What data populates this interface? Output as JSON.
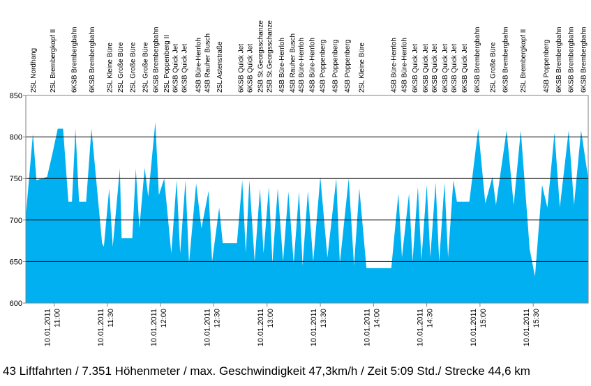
{
  "chart_data": {
    "type": "area",
    "caption": "43 Liftfahrten / 7.351 Höhenmeter / max. Geschwindigkeit 47,3km/h / Zeit 5:09 Std./ Strecke 44,6 km",
    "color": "#00b0f0",
    "grid": true,
    "ylim": [
      600,
      850
    ],
    "yticks": [
      600,
      650,
      700,
      750,
      800,
      850
    ],
    "xlim": [
      "10:44",
      "16:01"
    ],
    "xticks": [
      {
        "value": "11:00",
        "label": [
          "10.01.2011",
          "11:00"
        ]
      },
      {
        "value": "11:30",
        "label": [
          "10.01.2011",
          "11:30"
        ]
      },
      {
        "value": "12:00",
        "label": [
          "10.01.2011",
          "12:00"
        ]
      },
      {
        "value": "12:30",
        "label": [
          "10.01.2011",
          "12:30"
        ]
      },
      {
        "value": "13:00",
        "label": [
          "10.01.2011",
          "13:00"
        ]
      },
      {
        "value": "13:30",
        "label": [
          "10.01.2011",
          "13:30"
        ]
      },
      {
        "value": "14:00",
        "label": [
          "10.01.2011",
          "14:00"
        ]
      },
      {
        "value": "14:30",
        "label": [
          "10.01.2011",
          "14:30"
        ]
      },
      {
        "value": "15:00",
        "label": [
          "10.01.2011",
          "15:00"
        ]
      },
      {
        "value": "15:30",
        "label": [
          "10.01.2011",
          "15:30"
        ]
      }
    ],
    "x": [
      "10:44",
      "10:48",
      "10:50",
      "10:56",
      "10:59",
      "11:02",
      "11:05",
      "11:08",
      "11:10",
      "11:12",
      "11:14",
      "11:18",
      "11:21",
      "11:27",
      "11:28",
      "11:31",
      "11:33",
      "11:37",
      "11:38",
      "11:44",
      "11:46",
      "11:48",
      "11:51",
      "11:53",
      "11:57",
      "11:59",
      "12:02",
      "12:06",
      "12:09",
      "12:11",
      "12:14",
      "12:16",
      "12:20",
      "12:23",
      "12:27",
      "12:29",
      "12:33",
      "12:35",
      "12:43",
      "12:46",
      "12:48",
      "12:50",
      "12:53",
      "12:56",
      "12:58",
      "13:01",
      "13:03",
      "13:06",
      "13:09",
      "13:12",
      "13:15",
      "13:18",
      "13:20",
      "13:23",
      "13:26",
      "13:30",
      "13:34",
      "13:39",
      "13:41",
      "13:46",
      "13:49",
      "13:52",
      "13:56",
      "14:05",
      "14:10",
      "14:14",
      "14:16",
      "14:20",
      "14:22",
      "14:25",
      "14:27",
      "14:30",
      "14:32",
      "14:35",
      "14:37",
      "14:40",
      "14:42",
      "14:45",
      "14:47",
      "14:54",
      "14:59",
      "15:03",
      "15:07",
      "15:09",
      "15:15",
      "15:19",
      "15:23",
      "15:28",
      "15:31",
      "15:35",
      "15:38",
      "15:42",
      "15:45",
      "15:50",
      "15:53",
      "15:57",
      "16:01"
    ],
    "values": [
      705,
      804,
      748,
      752,
      780,
      810,
      810,
      722,
      722,
      810,
      722,
      722,
      810,
      672,
      668,
      738,
      668,
      762,
      678,
      678,
      762,
      690,
      763,
      728,
      818,
      730,
      750,
      660,
      748,
      660,
      748,
      648,
      744,
      690,
      735,
      650,
      715,
      672,
      672,
      748,
      660,
      748,
      650,
      738,
      660,
      740,
      648,
      738,
      650,
      734,
      648,
      734,
      645,
      735,
      650,
      752,
      655,
      750,
      648,
      750,
      645,
      738,
      642,
      642,
      642,
      732,
      655,
      732,
      650,
      740,
      652,
      742,
      655,
      745,
      650,
      745,
      655,
      748,
      722,
      722,
      810,
      720,
      752,
      718,
      808,
      718,
      808,
      665,
      632,
      742,
      715,
      805,
      715,
      808,
      718,
      808,
      750
    ],
    "annotations": [
      {
        "x": "10:48",
        "text": "2SL Nordhang"
      },
      {
        "x": "10:59",
        "text": "2SL Brembergkopf II"
      },
      {
        "x": "11:11",
        "text": "6KSB Brembergbahn"
      },
      {
        "x": "11:21",
        "text": "6KSB Brembergbahn"
      },
      {
        "x": "11:31",
        "text": "2SL Kleine Büre"
      },
      {
        "x": "11:37",
        "text": "2SL Große Büre"
      },
      {
        "x": "11:44",
        "text": "2SL Große Büre"
      },
      {
        "x": "11:51",
        "text": "2SL Große Büre"
      },
      {
        "x": "11:57",
        "text": "6KSB Brembergbahn"
      },
      {
        "x": "12:03",
        "text": "2SL Poppenberg II"
      },
      {
        "x": "12:08",
        "text": "6KSB Quick Jet"
      },
      {
        "x": "12:13",
        "text": "6KSB Quick Jet"
      },
      {
        "x": "12:21",
        "text": "4SB Büre-Herrloh"
      },
      {
        "x": "12:26",
        "text": "4SB Rauher Busch"
      },
      {
        "x": "12:33",
        "text": "2SL Astenstraße"
      },
      {
        "x": "12:45",
        "text": "6KSB Quick Jet"
      },
      {
        "x": "12:50",
        "text": "6KSB Quick Jet"
      },
      {
        "x": "12:56",
        "text": "2SB St.Georgsschanze"
      },
      {
        "x": "13:01",
        "text": "2SB St.Georgsschanze"
      },
      {
        "x": "13:08",
        "text": "4SB Büre-Herrloh"
      },
      {
        "x": "13:14",
        "text": "4SB Rauher Busch"
      },
      {
        "x": "13:19",
        "text": "4SB Büre-Herrloh"
      },
      {
        "x": "13:25",
        "text": "4SB Büre-Herrloh"
      },
      {
        "x": "13:31",
        "text": "4SB Poppenberg"
      },
      {
        "x": "13:38",
        "text": "4SB Poppenberg"
      },
      {
        "x": "13:45",
        "text": "4SB Poppenberg"
      },
      {
        "x": "13:53",
        "text": "2SL Kleine Büre"
      },
      {
        "x": "14:11",
        "text": "4SB Büre-Herrloh"
      },
      {
        "x": "14:17",
        "text": "4SB Büre-Herrloh"
      },
      {
        "x": "14:23",
        "text": "6KSB Quick Jet"
      },
      {
        "x": "14:29",
        "text": "6KSB Quick Jet"
      },
      {
        "x": "14:34",
        "text": "6KSB Quick Jet"
      },
      {
        "x": "14:40",
        "text": "6KSB Quick Jet"
      },
      {
        "x": "14:45",
        "text": "6KSB Quick Jet"
      },
      {
        "x": "14:51",
        "text": "6KSB Quick Jet"
      },
      {
        "x": "14:58",
        "text": "6KSB Brembergbahn"
      },
      {
        "x": "15:07",
        "text": "2SL Große Büre"
      },
      {
        "x": "15:14",
        "text": "6KSB Brembergbahn"
      },
      {
        "x": "15:24",
        "text": "2SL Brembergkopf II"
      },
      {
        "x": "15:37",
        "text": "4SB Poppenberg"
      },
      {
        "x": "15:44",
        "text": "6KSB Brembergbahn"
      },
      {
        "x": "15:51",
        "text": "6KSB Brembergbahn"
      },
      {
        "x": "15:58",
        "text": "6KSB Brembergbahn"
      }
    ]
  }
}
